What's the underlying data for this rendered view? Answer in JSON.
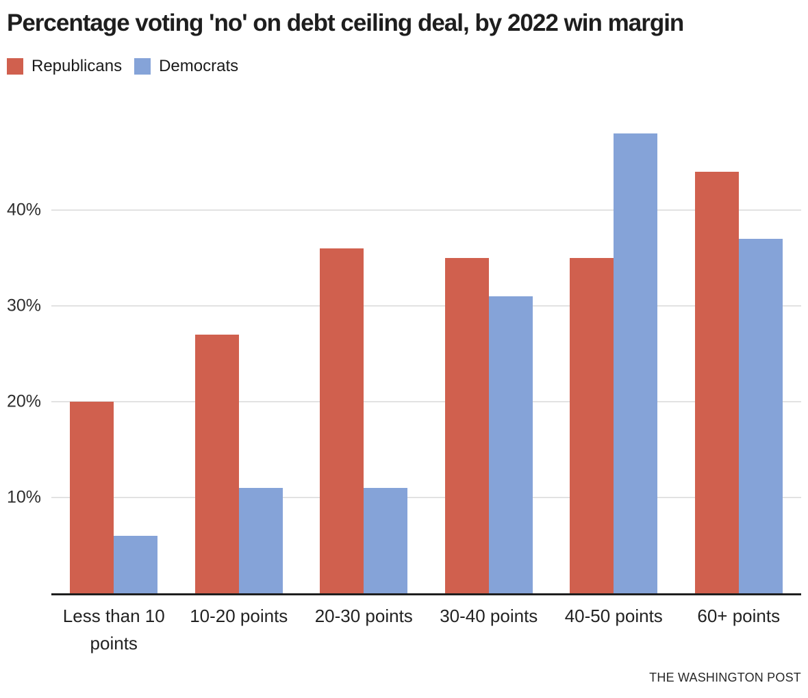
{
  "title": "Percentage voting 'no' on debt ceiling deal, by 2022 win margin",
  "source": "THE WASHINGTON POST",
  "colors": {
    "republican": "#d0604e",
    "democrat": "#85a3d8",
    "gridline": "#e2e2e2",
    "axis": "#1e1e1e"
  },
  "chart_data": {
    "type": "bar",
    "title": "Percentage voting 'no' on debt ceiling deal, by 2022 win margin",
    "categories": [
      "Less than 10 points",
      "10-20 points",
      "20-30 points",
      "30-40 points",
      "40-50 points",
      "60+ points"
    ],
    "series": [
      {
        "name": "Republicans",
        "color": "#d0604e",
        "values": [
          20,
          27,
          36,
          35,
          35,
          44
        ]
      },
      {
        "name": "Democrats",
        "color": "#85a3d8",
        "values": [
          6,
          11,
          11,
          31,
          48,
          37
        ]
      }
    ],
    "xlabel": "",
    "ylabel": "",
    "yticks": [
      10,
      20,
      30,
      40
    ],
    "ytick_labels": [
      "10%",
      "20%",
      "30%",
      "40%"
    ],
    "ylim": [
      0,
      51.5
    ],
    "grid": true,
    "legend_position": "top-left",
    "credit": "THE WASHINGTON POST"
  }
}
